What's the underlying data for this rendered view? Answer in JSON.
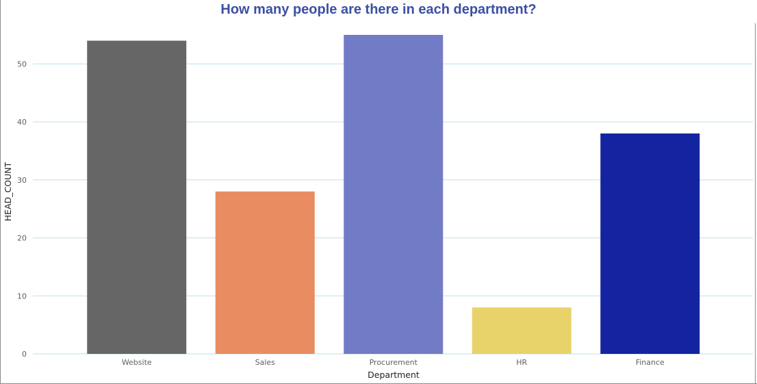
{
  "chart_data": {
    "type": "bar",
    "title": "How many people are there in each department?",
    "xlabel": "Department",
    "ylabel": "HEAD_COUNT",
    "categories": [
      "Website",
      "Sales",
      "Procurement",
      "HR",
      "Finance"
    ],
    "values": [
      54,
      28,
      55,
      8,
      38
    ],
    "colors": [
      "#666666",
      "#ea8c62",
      "#727bc6",
      "#e8d26a",
      "#1424a0"
    ],
    "ylim": [
      0,
      57
    ],
    "yticks": [
      0,
      10,
      20,
      30,
      40,
      50
    ],
    "grid": true,
    "grid_color": "#bfe0ef",
    "title_color": "#3b4fa3",
    "legend": "none"
  }
}
